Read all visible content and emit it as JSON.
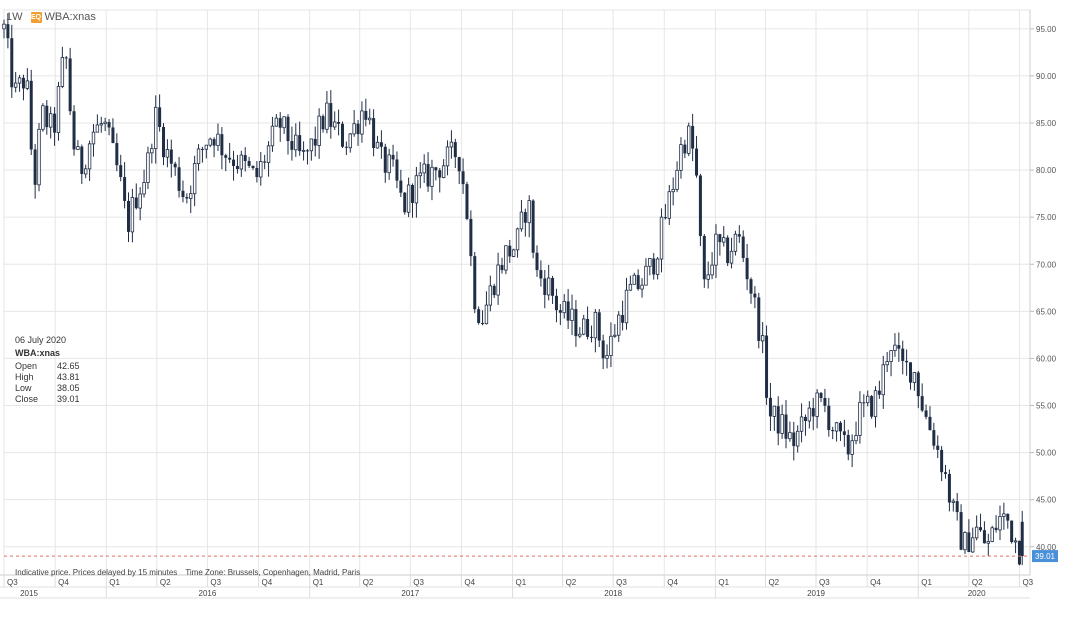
{
  "toolbar": {
    "timeframe": "1W",
    "badge": "EQ",
    "symbol": "WBA:xnas"
  },
  "info": {
    "date": "06 July 2020",
    "symbol": "WBA:xnas",
    "rows": [
      {
        "label": "Open",
        "value": "42.65"
      },
      {
        "label": "High",
        "value": "43.81"
      },
      {
        "label": "Low",
        "value": "38.05"
      },
      {
        "label": "Close",
        "value": "39.01"
      }
    ]
  },
  "footer": {
    "note": "Indicative price. Prices delayed by 15 minutes",
    "timezone": "Time Zone: Brussels, Copenhagen, Madrid, Paris"
  },
  "colors": {
    "candle": "#1f2d45",
    "grid": "#e6e6e6",
    "last_price_line": "#e07060",
    "last_price_badge": "#4a90d9"
  },
  "chart_data": {
    "type": "candlestick",
    "ylim": [
      37,
      97
    ],
    "y_ticks": [
      "40.00",
      "45.00",
      "50.00",
      "55.00",
      "60.00",
      "65.00",
      "70.00",
      "75.00",
      "80.00",
      "85.00",
      "90.00",
      "95.00"
    ],
    "x_range": [
      "2015-07-01",
      "2020-07-20"
    ],
    "quarter_ticks": [
      {
        "date": "2015-07-01",
        "label": "Q3"
      },
      {
        "date": "2015-10-01",
        "label": "Q4"
      },
      {
        "date": "2016-01-01",
        "label": "Q1"
      },
      {
        "date": "2016-04-01",
        "label": "Q2"
      },
      {
        "date": "2016-07-01",
        "label": "Q3"
      },
      {
        "date": "2016-10-01",
        "label": "Q4"
      },
      {
        "date": "2017-01-01",
        "label": "Q1"
      },
      {
        "date": "2017-04-01",
        "label": "Q2"
      },
      {
        "date": "2017-07-01",
        "label": "Q3"
      },
      {
        "date": "2017-10-01",
        "label": "Q4"
      },
      {
        "date": "2018-01-01",
        "label": "Q1"
      },
      {
        "date": "2018-04-01",
        "label": "Q2"
      },
      {
        "date": "2018-07-01",
        "label": "Q3"
      },
      {
        "date": "2018-10-01",
        "label": "Q4"
      },
      {
        "date": "2019-01-01",
        "label": "Q1"
      },
      {
        "date": "2019-04-01",
        "label": "Q2"
      },
      {
        "date": "2019-07-01",
        "label": "Q3"
      },
      {
        "date": "2019-10-01",
        "label": "Q4"
      },
      {
        "date": "2020-01-01",
        "label": "Q1"
      },
      {
        "date": "2020-04-01",
        "label": "Q2"
      },
      {
        "date": "2020-07-01",
        "label": "Q3"
      }
    ],
    "year_labels": [
      {
        "date": "2015-08-15",
        "label": "2015"
      },
      {
        "date": "2016-07-01",
        "label": "2016"
      },
      {
        "date": "2017-07-01",
        "label": "2017"
      },
      {
        "date": "2018-07-01",
        "label": "2018"
      },
      {
        "date": "2019-07-01",
        "label": "2019"
      },
      {
        "date": "2020-04-15",
        "label": "2020"
      }
    ],
    "path": [
      [
        "2015-07-01",
        95
      ],
      [
        "2015-07-20",
        88
      ],
      [
        "2015-08-10",
        90
      ],
      [
        "2015-08-24",
        78
      ],
      [
        "2015-09-07",
        86
      ],
      [
        "2015-09-28",
        84
      ],
      [
        "2015-10-19",
        93
      ],
      [
        "2015-11-02",
        83
      ],
      [
        "2015-11-16",
        80
      ],
      [
        "2015-12-07",
        84
      ],
      [
        "2015-12-28",
        85
      ],
      [
        "2016-01-11",
        82
      ],
      [
        "2016-01-25",
        79
      ],
      [
        "2016-02-08",
        74
      ],
      [
        "2016-02-22",
        77
      ],
      [
        "2016-03-14",
        80
      ],
      [
        "2016-03-28",
        86
      ],
      [
        "2016-04-18",
        82
      ],
      [
        "2016-05-02",
        80
      ],
      [
        "2016-05-23",
        77
      ],
      [
        "2016-06-13",
        81
      ],
      [
        "2016-06-27",
        83
      ],
      [
        "2016-07-11",
        84
      ],
      [
        "2016-08-01",
        82
      ],
      [
        "2016-08-22",
        81
      ],
      [
        "2016-09-12",
        80
      ],
      [
        "2016-09-26",
        79
      ],
      [
        "2016-10-17",
        82
      ],
      [
        "2016-11-07",
        85
      ],
      [
        "2016-11-28",
        83
      ],
      [
        "2016-12-19",
        81
      ],
      [
        "2017-01-09",
        83
      ],
      [
        "2017-01-30",
        86
      ],
      [
        "2017-02-20",
        84
      ],
      [
        "2017-03-06",
        83
      ],
      [
        "2017-03-27",
        85
      ],
      [
        "2017-04-10",
        87
      ],
      [
        "2017-04-24",
        84
      ],
      [
        "2017-05-08",
        81
      ],
      [
        "2017-05-29",
        80
      ],
      [
        "2017-06-19",
        76
      ],
      [
        "2017-07-03",
        78
      ],
      [
        "2017-07-24",
        79
      ],
      [
        "2017-08-14",
        80
      ],
      [
        "2017-09-04",
        81
      ],
      [
        "2017-09-25",
        82
      ],
      [
        "2017-10-09",
        77
      ],
      [
        "2017-10-23",
        67
      ],
      [
        "2017-11-06",
        64
      ],
      [
        "2017-11-27",
        68
      ],
      [
        "2017-12-18",
        71
      ],
      [
        "2018-01-08",
        72
      ],
      [
        "2018-01-29",
        77
      ],
      [
        "2018-02-12",
        69
      ],
      [
        "2018-03-05",
        68
      ],
      [
        "2018-03-26",
        65
      ],
      [
        "2018-04-16",
        64
      ],
      [
        "2018-05-07",
        63
      ],
      [
        "2018-05-28",
        64
      ],
      [
        "2018-06-18",
        60
      ],
      [
        "2018-07-09",
        64
      ],
      [
        "2018-07-30",
        67
      ],
      [
        "2018-08-20",
        68
      ],
      [
        "2018-09-10",
        70
      ],
      [
        "2018-09-24",
        73
      ],
      [
        "2018-10-15",
        78
      ],
      [
        "2018-10-29",
        82
      ],
      [
        "2018-11-12",
        84
      ],
      [
        "2018-11-26",
        81
      ],
      [
        "2018-12-10",
        67
      ],
      [
        "2018-12-31",
        72
      ],
      [
        "2019-01-21",
        71
      ],
      [
        "2019-02-11",
        73
      ],
      [
        "2019-03-04",
        68
      ],
      [
        "2019-03-25",
        62
      ],
      [
        "2019-04-08",
        54
      ],
      [
        "2019-04-29",
        53
      ],
      [
        "2019-05-20",
        51
      ],
      [
        "2019-06-10",
        53
      ],
      [
        "2019-06-24",
        55
      ],
      [
        "2019-07-15",
        55
      ],
      [
        "2019-08-05",
        52
      ],
      [
        "2019-08-26",
        50
      ],
      [
        "2019-09-16",
        54
      ],
      [
        "2019-10-07",
        55
      ],
      [
        "2019-10-21",
        56
      ],
      [
        "2019-11-11",
        62
      ],
      [
        "2019-12-02",
        59
      ],
      [
        "2019-12-23",
        59
      ],
      [
        "2020-01-13",
        54
      ],
      [
        "2020-01-27",
        52
      ],
      [
        "2020-02-17",
        48
      ],
      [
        "2020-03-02",
        44
      ],
      [
        "2020-03-23",
        40
      ],
      [
        "2020-04-13",
        42
      ],
      [
        "2020-05-04",
        40
      ],
      [
        "2020-05-25",
        43
      ],
      [
        "2020-06-08",
        43
      ],
      [
        "2020-06-22",
        41
      ],
      [
        "2020-07-06",
        39.01
      ]
    ],
    "last_candle": {
      "date": "2020-07-06",
      "open": 42.65,
      "high": 43.81,
      "low": 38.05,
      "close": 39.01
    },
    "last_price_label": "39.01"
  }
}
